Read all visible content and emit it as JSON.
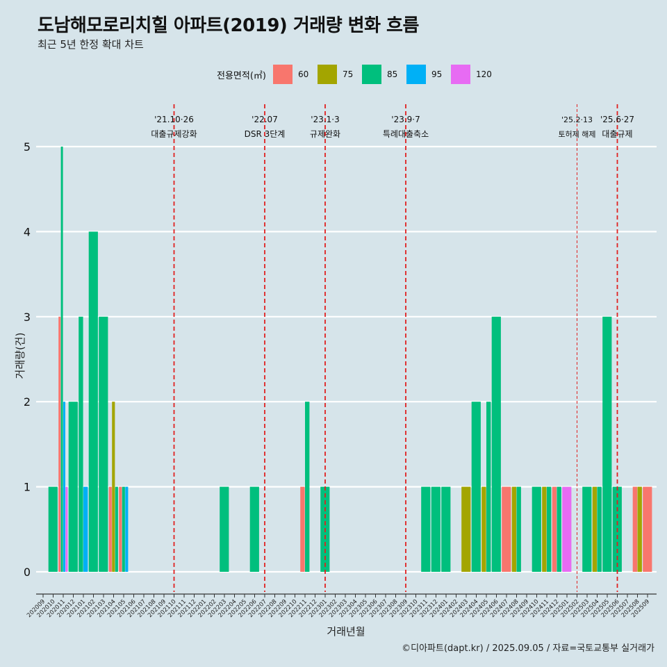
{
  "header": {
    "title": "도남해모로리치힐 아파트(2019) 거래량 변화 흐름",
    "subtitle": "최근 5년 한정 확대 차트"
  },
  "legend": {
    "title": "전용면적(㎡)",
    "items": [
      {
        "label": "60",
        "color": "#f8766d"
      },
      {
        "label": "75",
        "color": "#a3a500"
      },
      {
        "label": "85",
        "color": "#00bf7d"
      },
      {
        "label": "95",
        "color": "#00b0f6"
      },
      {
        "label": "120",
        "color": "#e76bf3"
      }
    ]
  },
  "caption": "©디아파트(dapt.kr) / 2025.09.05 / 자료=국토교통부 실거래가",
  "chart_data": {
    "type": "bar",
    "xlabel": "거래년월",
    "ylabel": "거래량(건)",
    "ylim": [
      0,
      5
    ],
    "yticks": [
      0,
      1,
      2,
      3,
      4,
      5
    ],
    "grid": true,
    "legend_position": "top",
    "categories": [
      "202009",
      "202010",
      "202011",
      "202012",
      "202101",
      "202102",
      "202103",
      "202104",
      "202105",
      "202106",
      "202107",
      "202108",
      "202109",
      "202110",
      "202111",
      "202112",
      "202201",
      "202202",
      "202203",
      "202204",
      "202205",
      "202206",
      "202207",
      "202208",
      "202209",
      "202210",
      "202211",
      "202212",
      "202301",
      "202302",
      "202303",
      "202304",
      "202305",
      "202306",
      "202307",
      "202308",
      "202309",
      "202310",
      "202311",
      "202312",
      "202401",
      "202402",
      "202403",
      "202404",
      "202405",
      "202406",
      "202407",
      "202408",
      "202409",
      "202410",
      "202411",
      "202412",
      "202501",
      "202502",
      "202503",
      "202504",
      "202505",
      "202506",
      "202507",
      "202508",
      "202509"
    ],
    "bars": [
      {
        "month": "202010",
        "groups": [
          {
            "area": "85",
            "count": 1
          }
        ]
      },
      {
        "month": "202011",
        "groups": [
          {
            "area": "60",
            "count": 3
          },
          {
            "area": "85",
            "count": 5
          },
          {
            "area": "95",
            "count": 2
          },
          {
            "area": "120",
            "count": 1
          }
        ]
      },
      {
        "month": "202012",
        "groups": [
          {
            "area": "85",
            "count": 2
          }
        ]
      },
      {
        "month": "202101",
        "groups": [
          {
            "area": "85",
            "count": 3
          },
          {
            "area": "95",
            "count": 1
          }
        ]
      },
      {
        "month": "202102",
        "groups": [
          {
            "area": "85",
            "count": 4
          }
        ]
      },
      {
        "month": "202103",
        "groups": [
          {
            "area": "85",
            "count": 3
          }
        ]
      },
      {
        "month": "202104",
        "groups": [
          {
            "area": "60",
            "count": 1
          },
          {
            "area": "75",
            "count": 2
          },
          {
            "area": "85",
            "count": 1
          }
        ]
      },
      {
        "month": "202105",
        "groups": [
          {
            "area": "60",
            "count": 1
          },
          {
            "area": "85",
            "count": 1
          },
          {
            "area": "95",
            "count": 1
          }
        ]
      },
      {
        "month": "202203",
        "groups": [
          {
            "area": "85",
            "count": 1
          }
        ]
      },
      {
        "month": "202206",
        "groups": [
          {
            "area": "85",
            "count": 1
          }
        ]
      },
      {
        "month": "202211",
        "groups": [
          {
            "area": "60",
            "count": 1
          },
          {
            "area": "85",
            "count": 2
          }
        ]
      },
      {
        "month": "202301",
        "groups": [
          {
            "area": "85",
            "count": 1
          }
        ]
      },
      {
        "month": "202311",
        "groups": [
          {
            "area": "85",
            "count": 1
          }
        ]
      },
      {
        "month": "202312",
        "groups": [
          {
            "area": "85",
            "count": 1
          }
        ]
      },
      {
        "month": "202401",
        "groups": [
          {
            "area": "85",
            "count": 1
          }
        ]
      },
      {
        "month": "202403",
        "groups": [
          {
            "area": "75",
            "count": 1
          }
        ]
      },
      {
        "month": "202404",
        "groups": [
          {
            "area": "85",
            "count": 2
          }
        ]
      },
      {
        "month": "202405",
        "groups": [
          {
            "area": "75",
            "count": 1
          },
          {
            "area": "85",
            "count": 2
          }
        ]
      },
      {
        "month": "202406",
        "groups": [
          {
            "area": "85",
            "count": 3
          }
        ]
      },
      {
        "month": "202407",
        "groups": [
          {
            "area": "60",
            "count": 1
          }
        ]
      },
      {
        "month": "202408",
        "groups": [
          {
            "area": "75",
            "count": 1
          },
          {
            "area": "85",
            "count": 1
          }
        ]
      },
      {
        "month": "202410",
        "groups": [
          {
            "area": "85",
            "count": 1
          }
        ]
      },
      {
        "month": "202411",
        "groups": [
          {
            "area": "75",
            "count": 1
          },
          {
            "area": "85",
            "count": 1
          }
        ]
      },
      {
        "month": "202412",
        "groups": [
          {
            "area": "60",
            "count": 1
          },
          {
            "area": "85",
            "count": 1
          }
        ]
      },
      {
        "month": "202501",
        "groups": [
          {
            "area": "120",
            "count": 1
          }
        ]
      },
      {
        "month": "202503",
        "groups": [
          {
            "area": "85",
            "count": 1
          }
        ]
      },
      {
        "month": "202504",
        "groups": [
          {
            "area": "75",
            "count": 1
          },
          {
            "area": "85",
            "count": 1
          }
        ]
      },
      {
        "month": "202505",
        "groups": [
          {
            "area": "85",
            "count": 3
          }
        ]
      },
      {
        "month": "202506",
        "groups": [
          {
            "area": "85",
            "count": 1
          }
        ]
      },
      {
        "month": "202508",
        "groups": [
          {
            "area": "60",
            "count": 1
          },
          {
            "area": "75",
            "count": 1
          }
        ]
      },
      {
        "month": "202509",
        "groups": [
          {
            "area": "60",
            "count": 1
          }
        ]
      }
    ],
    "events": [
      {
        "month": "202110",
        "line1": "'21.10·26",
        "line2": "대출규제강화",
        "style": "major"
      },
      {
        "month": "202207",
        "line1": "'22.07",
        "line2": "DSR 3단계",
        "style": "major"
      },
      {
        "month": "202301",
        "line1": "'23.1·3",
        "line2": "규제완화",
        "style": "major"
      },
      {
        "month": "202309",
        "line1": "'23.9·7",
        "line2": "특례대출축소",
        "style": "major"
      },
      {
        "month": "202502",
        "line1": "'25.2·13",
        "line2": "토허제 해제",
        "style": "minor"
      },
      {
        "month": "202506",
        "line1": "'25.6·27",
        "line2": "대출규제",
        "style": "major"
      }
    ]
  }
}
